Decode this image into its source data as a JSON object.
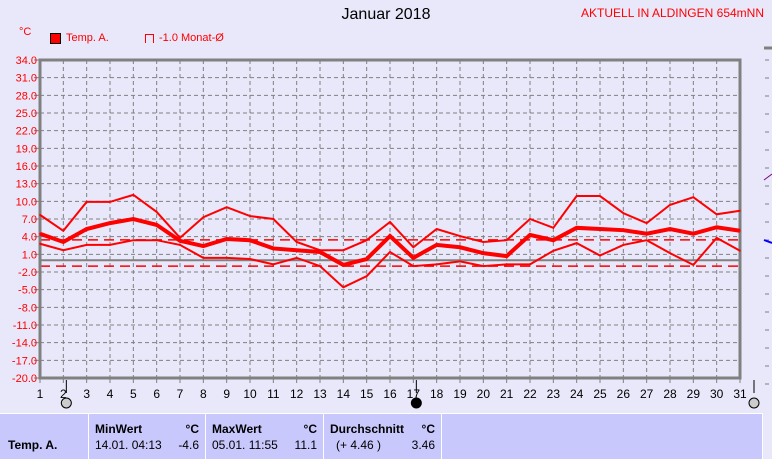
{
  "header": {
    "title": "Januar 2018",
    "station": "AKTUELL IN ALDINGEN 654mNN",
    "unit": "°C"
  },
  "legend": [
    {
      "label": "Temp. A.",
      "color": "#ff0000"
    },
    {
      "label": "-1.0 Monat-Ø",
      "color": "#ff0000"
    }
  ],
  "chart_data": {
    "type": "line",
    "title": "Januar 2018",
    "ylabel": "°C",
    "ylim": [
      -20.0,
      34.0
    ],
    "yticks": [
      "34.0",
      "31.0",
      "28.0",
      "25.0",
      "22.0",
      "19.0",
      "16.0",
      "13.0",
      "10.0",
      "7.0",
      "4.0",
      "1.0",
      "-2.0",
      "-5.0",
      "-8.0",
      "-11.0",
      "-14.0",
      "-17.0",
      "-20.0"
    ],
    "x": [
      1,
      2,
      3,
      4,
      5,
      6,
      7,
      8,
      9,
      10,
      11,
      12,
      13,
      14,
      15,
      16,
      17,
      18,
      19,
      20,
      21,
      22,
      23,
      24,
      25,
      26,
      27,
      28,
      29,
      30,
      31
    ],
    "grid": true,
    "series": [
      {
        "values": [
          7.7,
          5.0,
          9.9,
          9.9,
          11.1,
          8.2,
          3.8,
          7.3,
          9.0,
          7.5,
          7.0,
          3.1,
          1.7,
          1.7,
          3.4,
          6.5,
          2.2,
          5.3,
          4.1,
          3.1,
          3.4,
          7.0,
          5.5,
          10.9,
          10.9,
          8.0,
          6.3,
          9.4,
          10.7,
          7.8,
          8.4
        ],
        "color": "#ff0000"
      },
      {
        "values": [
          4.5,
          3.1,
          5.3,
          6.3,
          7.0,
          6.0,
          3.3,
          2.4,
          3.6,
          3.4,
          2.0,
          1.7,
          1.4,
          -0.8,
          0.2,
          4.1,
          0.4,
          2.6,
          2.2,
          1.2,
          0.7,
          4.3,
          3.4,
          5.5,
          5.3,
          5.1,
          4.5,
          5.3,
          4.5,
          5.6,
          5.0
        ],
        "color": "#ff0000"
      },
      {
        "values": [
          2.8,
          1.7,
          2.6,
          2.6,
          3.4,
          3.4,
          2.6,
          0.4,
          0.4,
          0.2,
          -0.7,
          0.4,
          -1.0,
          -4.6,
          -2.7,
          1.4,
          -1.0,
          -0.7,
          -0.2,
          -1.0,
          -0.7,
          -0.7,
          1.6,
          2.9,
          0.8,
          2.6,
          3.4,
          1.2,
          -0.8,
          3.8,
          1.6
        ],
        "color": "#ff0000"
      }
    ],
    "reference_lines": [
      {
        "value": 3.46,
        "color": "#ff0000",
        "style": "dashed"
      },
      {
        "value": -1.0,
        "color": "#ff0000",
        "style": "dashed"
      },
      {
        "value": 0,
        "color": "#808080",
        "style": "solid"
      }
    ],
    "moon_phases": [
      {
        "day": 2,
        "phase": "full"
      },
      {
        "day": 17,
        "phase": "new"
      },
      {
        "day": 31,
        "phase": "full"
      }
    ]
  },
  "table": {
    "row_label": "Temp. A.",
    "min": {
      "header": "MinWert",
      "unit": "°C",
      "date": "14.01.  04:13",
      "value": "-4.6"
    },
    "max": {
      "header": "MaxWert",
      "unit": "°C",
      "date": "05.01.  11:55",
      "value": "11.1"
    },
    "avg": {
      "header": "Durchschnitt",
      "unit": "°C",
      "note": "(+ 4.46 )",
      "value": "3.46"
    }
  }
}
